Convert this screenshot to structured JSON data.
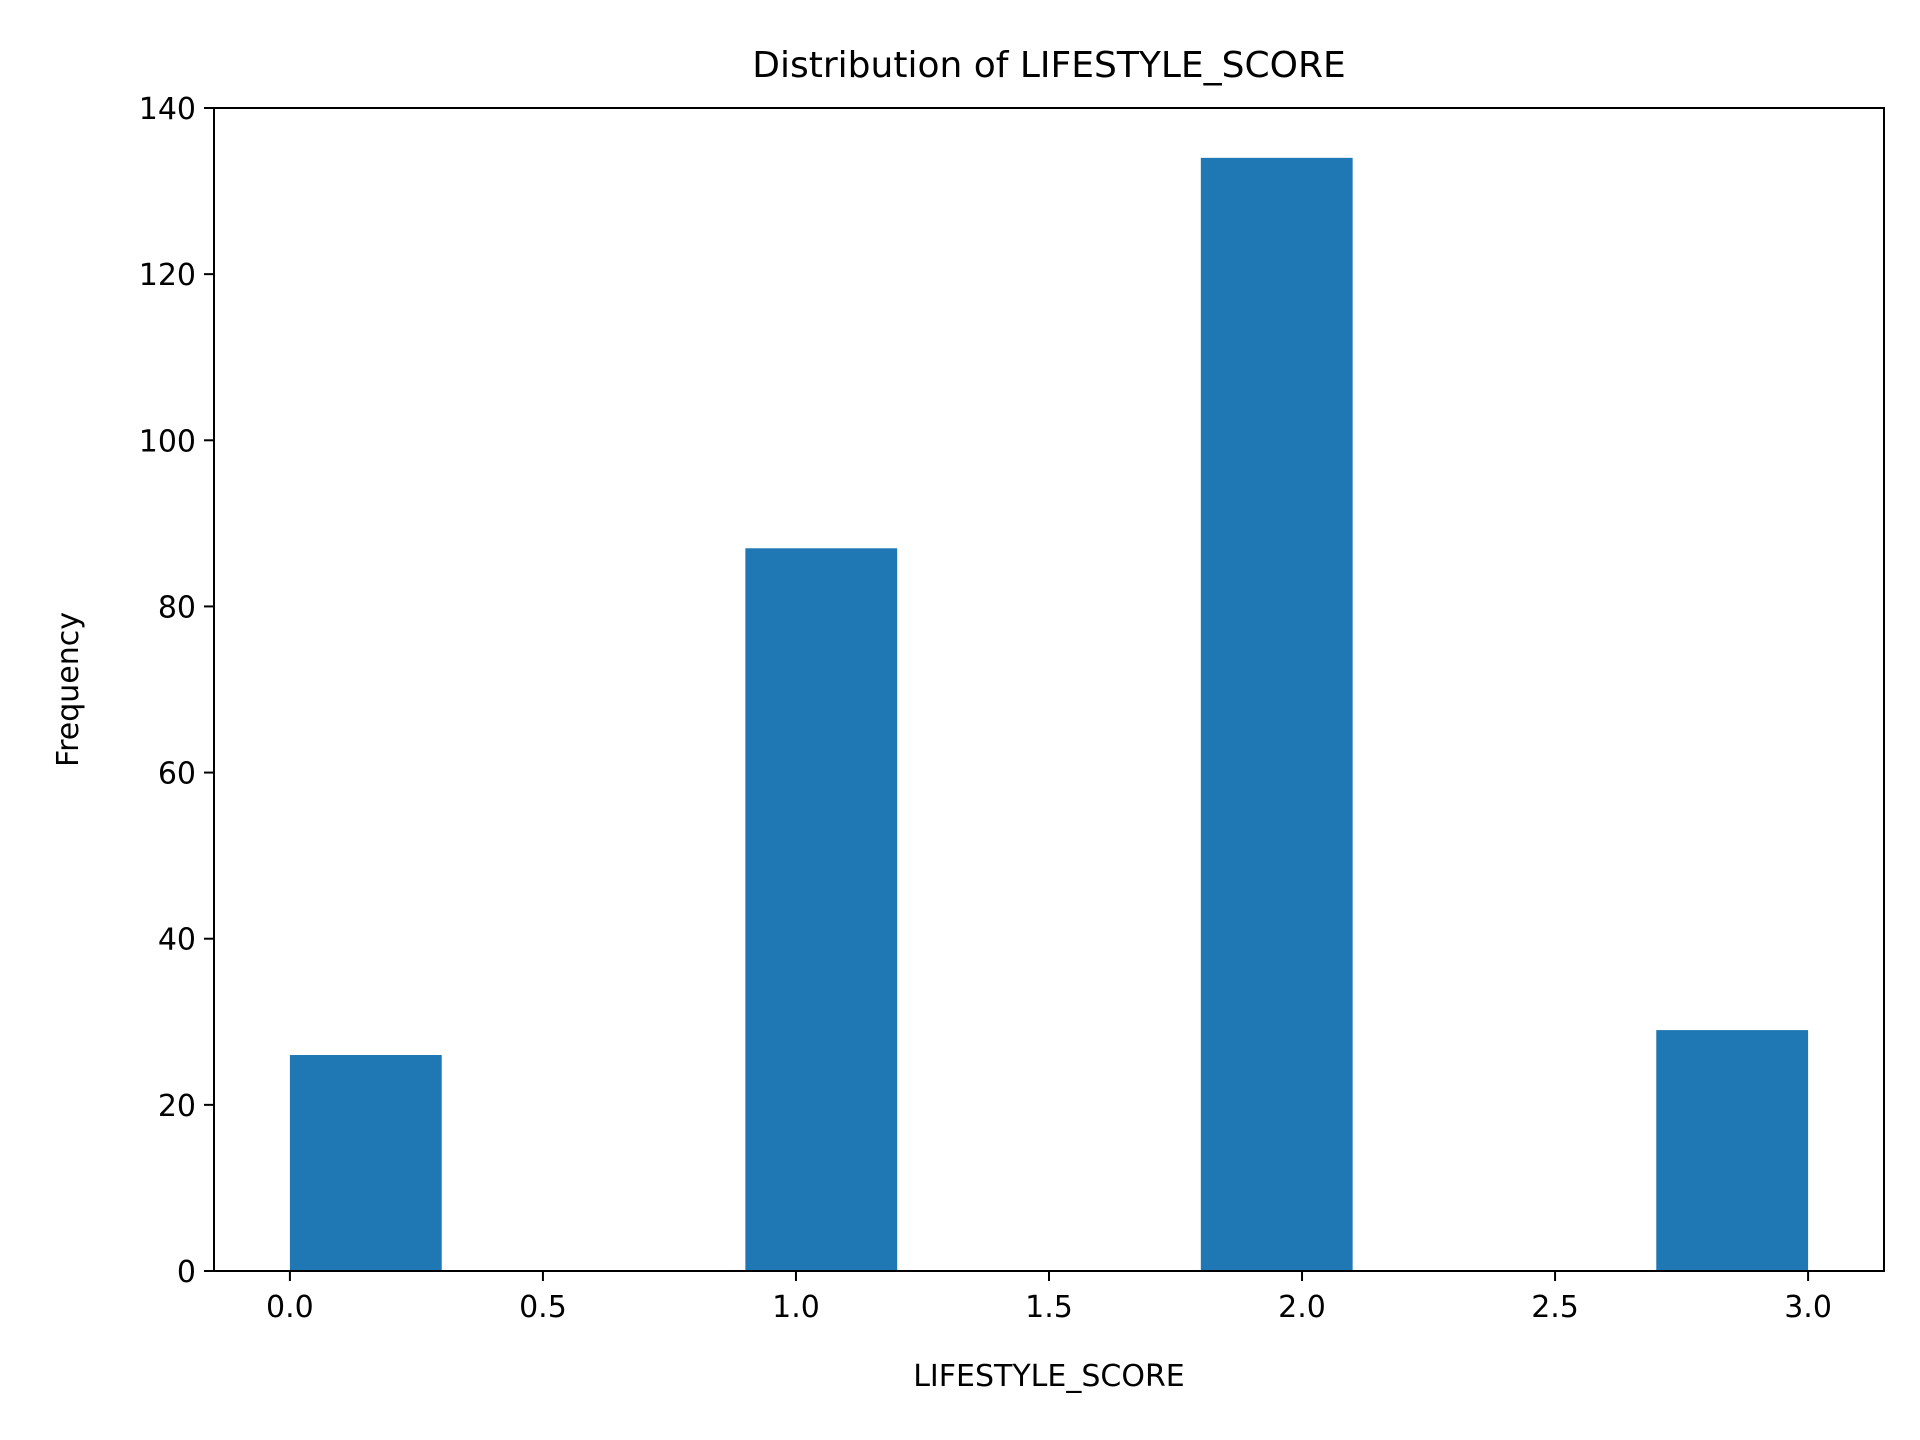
{
  "chart_data": {
    "type": "bar",
    "title": "Distribution of LIFESTYLE_SCORE",
    "xlabel": "LIFESTYLE_SCORE",
    "ylabel": "Frequency",
    "bar_color": "#1f77b4",
    "grid": false,
    "legend": "none",
    "xlim": [
      -0.15,
      3.15
    ],
    "ylim": [
      0,
      140
    ],
    "xticks": [
      0.0,
      0.5,
      1.0,
      1.5,
      2.0,
      2.5,
      3.0
    ],
    "xtick_labels": [
      "0.0",
      "0.5",
      "1.0",
      "1.5",
      "2.0",
      "2.5",
      "3.0"
    ],
    "yticks": [
      0,
      20,
      40,
      60,
      80,
      100,
      120,
      140
    ],
    "ytick_labels": [
      "0",
      "20",
      "40",
      "60",
      "80",
      "100",
      "120",
      "140"
    ],
    "bins": [
      {
        "x_start": 0.0,
        "x_end": 0.3,
        "value": 26
      },
      {
        "x_start": 0.3,
        "x_end": 0.6,
        "value": 0
      },
      {
        "x_start": 0.6,
        "x_end": 0.9,
        "value": 0
      },
      {
        "x_start": 0.9,
        "x_end": 1.2,
        "value": 87
      },
      {
        "x_start": 1.2,
        "x_end": 1.5,
        "value": 0
      },
      {
        "x_start": 1.5,
        "x_end": 1.8,
        "value": 0
      },
      {
        "x_start": 1.8,
        "x_end": 2.1,
        "value": 134
      },
      {
        "x_start": 2.1,
        "x_end": 2.4,
        "value": 0
      },
      {
        "x_start": 2.4,
        "x_end": 2.7,
        "value": 0
      },
      {
        "x_start": 2.7,
        "x_end": 3.0,
        "value": 29
      }
    ]
  }
}
